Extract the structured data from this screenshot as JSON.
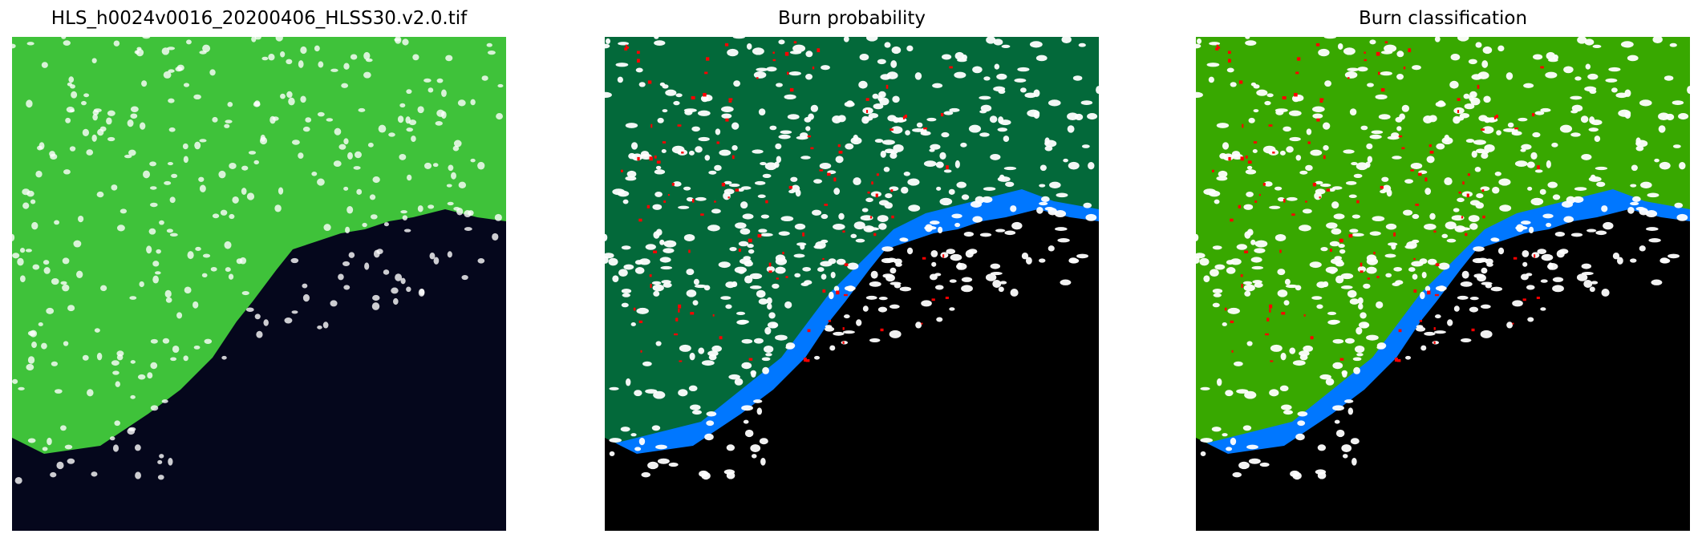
{
  "panels": [
    {
      "title": "HLS_h0024v0016_20200406_HLSS30.v2.0.tif",
      "kind": "rgb"
    },
    {
      "title": "Burn probability",
      "kind": "probability"
    },
    {
      "title": "Burn classification",
      "kind": "classification"
    }
  ],
  "colors": {
    "rgb_land": "#3fc23a",
    "rgb_sea": "#05071c",
    "prob_land": "#03693a",
    "class_land": "#38a800",
    "water": "#0077ff",
    "nodata": "#000000",
    "cloud": "#ffffff",
    "burn": "#ff0000"
  }
}
